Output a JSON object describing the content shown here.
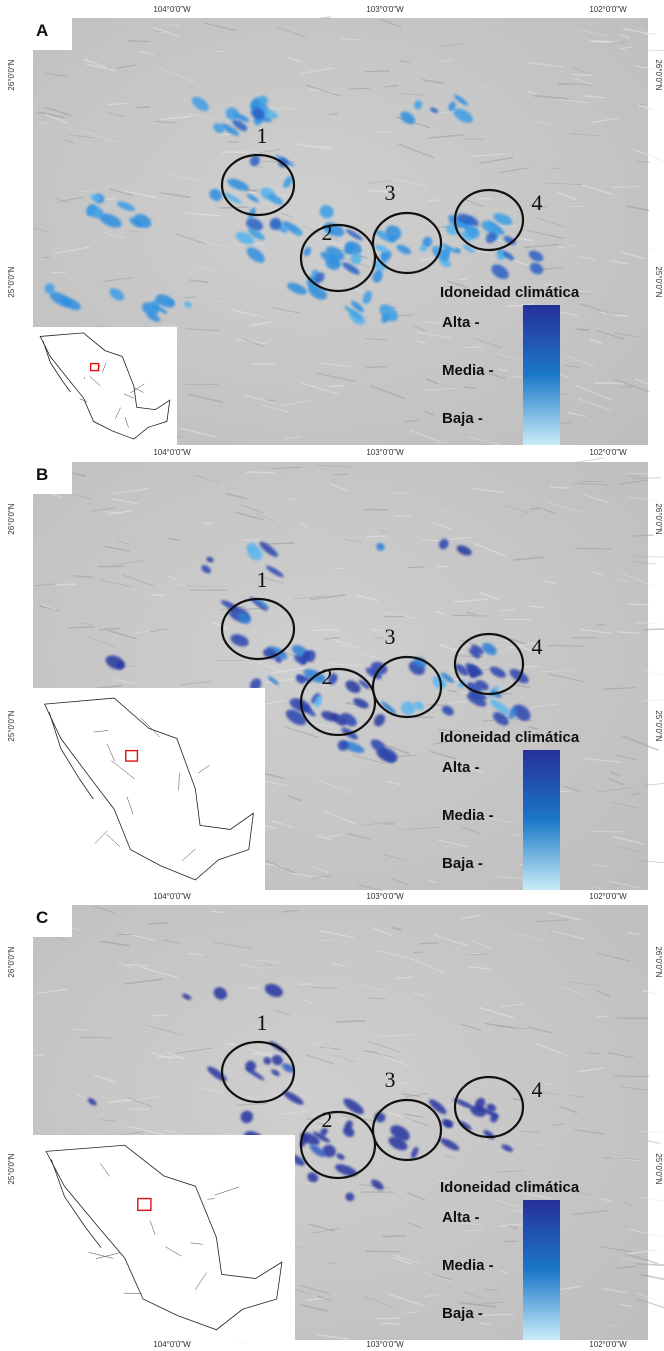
{
  "panels": [
    {
      "label": "A",
      "top_ticks": [
        "104°0'0\"W",
        "103°0'0\"W",
        "102°0'0\"W"
      ],
      "left_ticks": [
        "26°0'0\"N",
        "25°0'0\"N"
      ],
      "right_ticks": [
        "26°0'0\"N",
        "25°0'0\"N"
      ],
      "sites": [
        "1",
        "2",
        "3",
        "4"
      ],
      "legend": {
        "title": "Idoneidad climática",
        "levels": [
          "Alta -",
          "Media -",
          "Baja -"
        ]
      }
    },
    {
      "label": "B",
      "top_ticks": [
        "104°0'0\"W",
        "103°0'0\"W",
        "102°0'0\"W"
      ],
      "left_ticks": [
        "26°0'0\"N",
        "25°0'0\"N"
      ],
      "right_ticks": [
        "26°0'0\"N",
        "25°0'0\"N"
      ],
      "sites": [
        "1",
        "2",
        "3",
        "4"
      ],
      "legend": {
        "title": "Idoneidad climática",
        "levels": [
          "Alta -",
          "Media -",
          "Baja -"
        ]
      }
    },
    {
      "label": "C",
      "top_ticks": [
        "104°0'0\"W",
        "103°0'0\"W",
        "102°0'0\"W"
      ],
      "left_ticks": [
        "26°0'0\"N",
        "25°0'0\"N"
      ],
      "right_ticks": [
        "26°0'0\"N",
        "25°0'0\"N"
      ],
      "sites": [
        "1",
        "2",
        "3",
        "4"
      ],
      "legend": {
        "title": "Idoneidad climática",
        "levels": [
          "Alta -",
          "Media -",
          "Baja -"
        ]
      },
      "bottom_ticks": [
        "104°0'0\"W",
        "103°0'0\"W",
        "102°0'0\"W"
      ]
    }
  ]
}
